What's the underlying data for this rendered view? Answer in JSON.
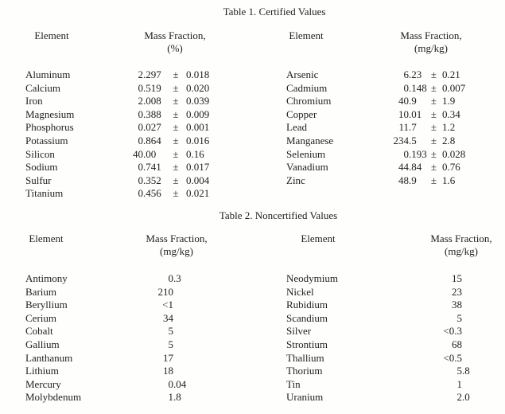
{
  "tables": [
    {
      "title": "Table 1. Certified Values",
      "panels": [
        {
          "headers": {
            "element": "Element",
            "mass_fraction": "Mass Fraction,",
            "unit": "(%)"
          },
          "pm": "±",
          "rows": [
            {
              "element": "Aluminum",
              "value": "2.297",
              "unc": "0.018"
            },
            {
              "element": "Calcium",
              "value": "0.519",
              "unc": "0.020"
            },
            {
              "element": "Iron",
              "value": "2.008",
              "unc": "0.039"
            },
            {
              "element": "Magnesium",
              "value": "0.388",
              "unc": "0.009"
            },
            {
              "element": "Phosphorus",
              "value": "0.027",
              "unc": "0.001"
            },
            {
              "element": "Potassium",
              "value": "0.864",
              "unc": "0.016"
            },
            {
              "element": "Silicon",
              "value": "40.00",
              "unc": "0.16"
            },
            {
              "element": "Sodium",
              "value": "0.741",
              "unc": "0.017"
            },
            {
              "element": "Sulfur",
              "value": "0.352",
              "unc": "0.004"
            },
            {
              "element": "Titanium",
              "value": "0.456",
              "unc": "0.021"
            }
          ]
        },
        {
          "headers": {
            "element": "Element",
            "mass_fraction": "Mass Fraction,",
            "unit": "(mg/kg)"
          },
          "pm": "±",
          "rows": [
            {
              "element": "Arsenic",
              "value": "6.23",
              "unc": "0.21"
            },
            {
              "element": "Cadmium",
              "value": "0.148",
              "unc": "0.007"
            },
            {
              "element": "Chromium",
              "value": "40.9",
              "unc": "1.9"
            },
            {
              "element": "Copper",
              "value": "10.01",
              "unc": "0.34"
            },
            {
              "element": "Lead",
              "value": "11.7",
              "unc": "1.2"
            },
            {
              "element": "Manganese",
              "value": "234.5",
              "unc": "2.8"
            },
            {
              "element": "Selenium",
              "value": "0.193",
              "unc": "0.028"
            },
            {
              "element": "Vanadium",
              "value": "44.84",
              "unc": "0.76"
            },
            {
              "element": "Zinc",
              "value": "48.9",
              "unc": "1.6"
            }
          ]
        }
      ]
    },
    {
      "title": "Table 2. Noncertified Values",
      "panels": [
        {
          "headers": {
            "element": "Element",
            "mass_fraction": "Mass Fraction,",
            "unit": "(mg/kg)"
          },
          "rows": [
            {
              "element": "Antimony",
              "value": "0.3"
            },
            {
              "element": "Barium",
              "value": "210"
            },
            {
              "element": "Beryllium",
              "value": "<1"
            },
            {
              "element": "Cerium",
              "value": "34"
            },
            {
              "element": "Cobalt",
              "value": "5"
            },
            {
              "element": "Gallium",
              "value": "5"
            },
            {
              "element": "Lanthanum",
              "value": "17"
            },
            {
              "element": "Lithium",
              "value": "18"
            },
            {
              "element": "Mercury",
              "value": "0.04"
            },
            {
              "element": "Molybdenum",
              "value": "1.8"
            }
          ]
        },
        {
          "headers": {
            "element": "Element",
            "mass_fraction": "Mass Fraction,",
            "unit": "(mg/kg)"
          },
          "rows": [
            {
              "element": "Neodymium",
              "value": "15"
            },
            {
              "element": "Nickel",
              "value": "23"
            },
            {
              "element": "Rubidium",
              "value": "38"
            },
            {
              "element": "Scandium",
              "value": "5"
            },
            {
              "element": "Silver",
              "value": "<0.3"
            },
            {
              "element": "Strontium",
              "value": "68"
            },
            {
              "element": "Thallium",
              "value": "<0.5"
            },
            {
              "element": "Thorium",
              "value": "5.8"
            },
            {
              "element": "Tin",
              "value": "1"
            },
            {
              "element": "Uranium",
              "value": "2.0"
            }
          ]
        }
      ]
    }
  ]
}
